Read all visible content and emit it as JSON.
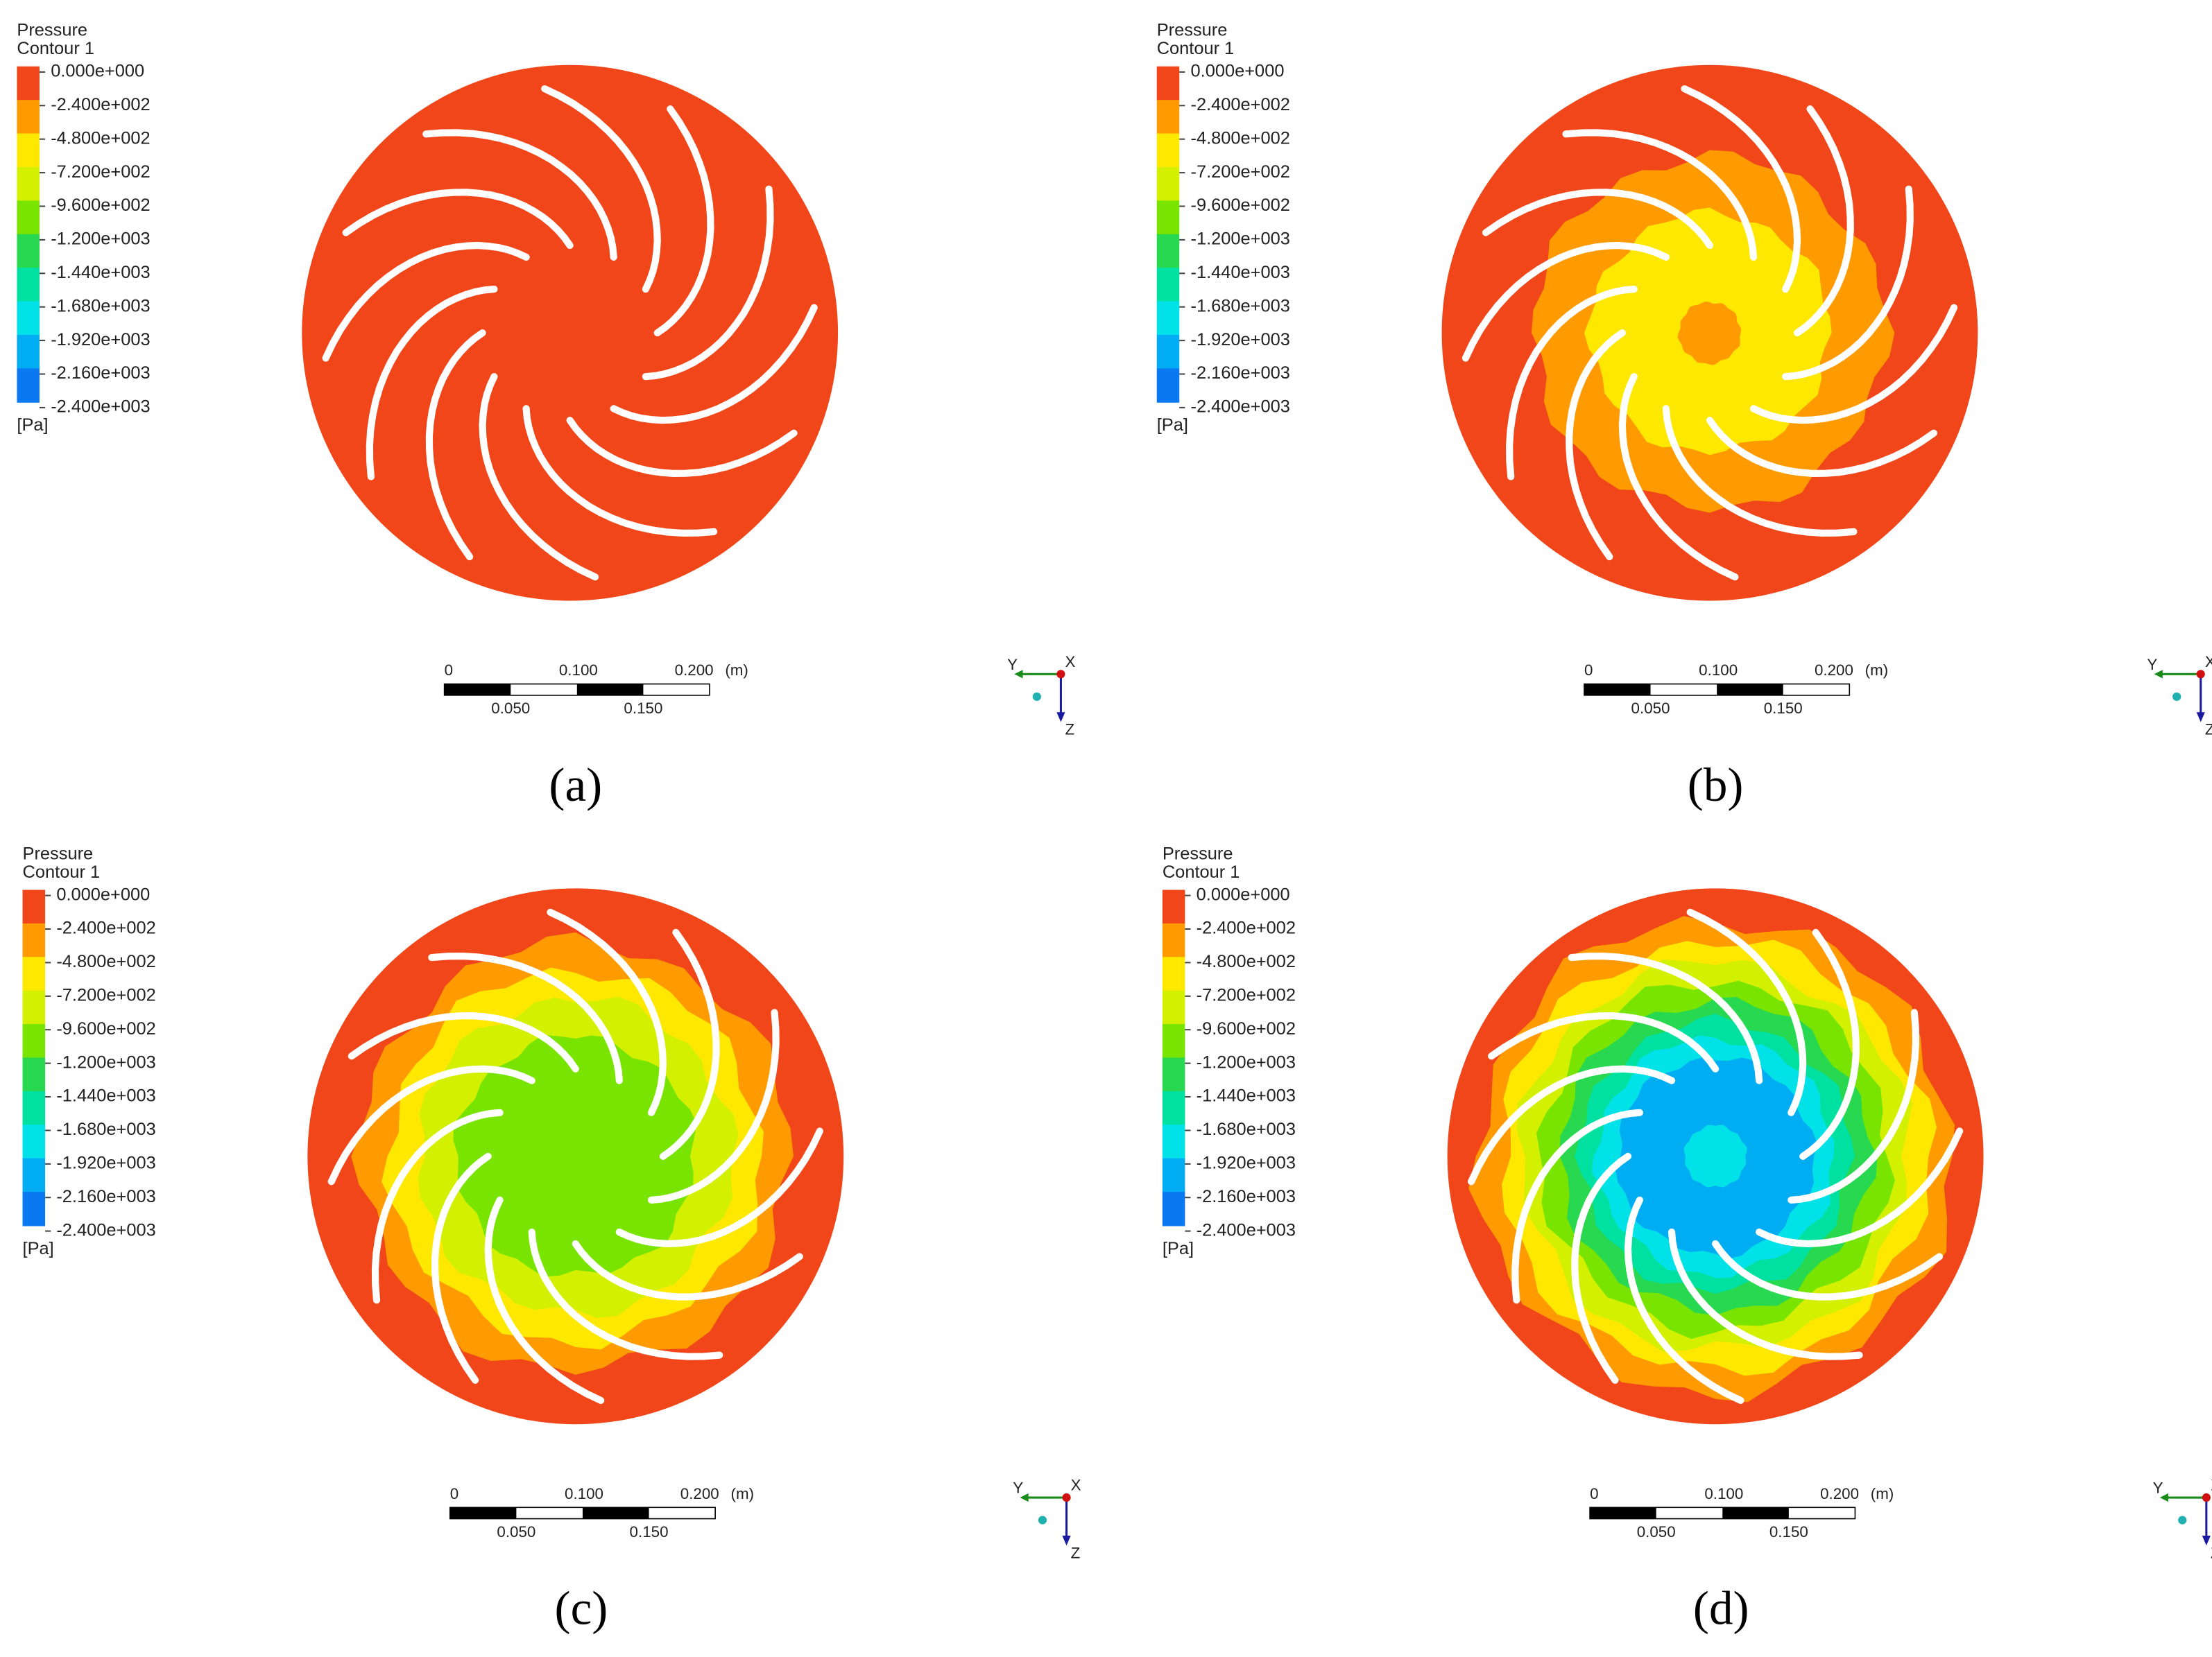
{
  "legend": {
    "title": "Pressure",
    "subtitle": "Contour 1",
    "labels": [
      "0.000e+000",
      "-2.400e+002",
      "-4.800e+002",
      "-7.200e+002",
      "-9.600e+002",
      "-1.200e+003",
      "-1.440e+003",
      "-1.680e+003",
      "-1.920e+003",
      "-2.160e+003",
      "-2.400e+003"
    ],
    "colors": [
      "#f0461a",
      "#ff9a00",
      "#ffe800",
      "#d2f000",
      "#78e400",
      "#28d850",
      "#00e0a0",
      "#00e2e8",
      "#00acf2",
      "#0a78f0",
      "#1448e6"
    ],
    "unit": "[Pa]"
  },
  "scale_bar": {
    "top_labels": [
      "0",
      "0.100",
      "0.200"
    ],
    "unit": "(m)",
    "bottom_labels": [
      "0.050",
      "0.150"
    ]
  },
  "axes": {
    "y": "Y",
    "x": "X",
    "z": "Z"
  },
  "panels": [
    {
      "caption": "(a)"
    },
    {
      "caption": "(b)"
    },
    {
      "caption": "(c)"
    },
    {
      "caption": "(d)"
    }
  ]
}
